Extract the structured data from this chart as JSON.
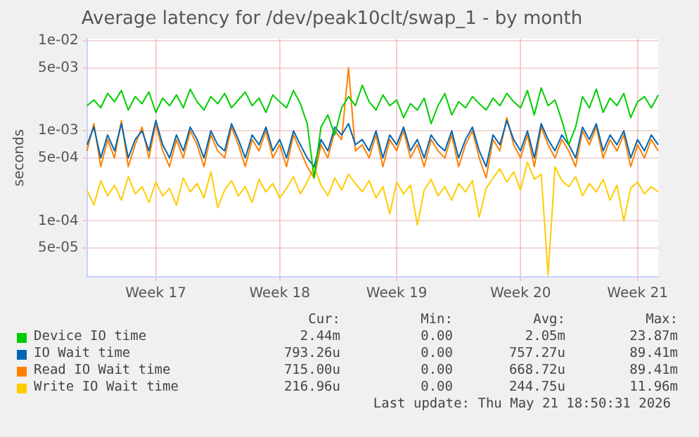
{
  "chart_data": {
    "type": "line",
    "title": "Average latency for /dev/peak10clt/swap_1 - by month",
    "ylabel": "seconds",
    "categories": [
      null,
      null,
      null,
      null,
      null,
      null,
      null,
      null,
      null,
      null,
      "Week 17",
      null,
      null,
      null,
      null,
      null,
      null,
      null,
      null,
      null,
      null,
      null,
      null,
      null,
      null,
      null,
      null,
      null,
      "Week 18",
      null,
      null,
      null,
      null,
      null,
      null,
      null,
      null,
      null,
      null,
      null,
      null,
      null,
      null,
      null,
      null,
      "Week 19",
      null,
      null,
      null,
      null,
      null,
      null,
      null,
      null,
      null,
      null,
      null,
      null,
      null,
      null,
      null,
      null,
      null,
      "Week 20",
      null,
      null,
      null,
      null,
      null,
      null,
      null,
      null,
      null,
      null,
      null,
      null,
      null,
      null,
      null,
      null,
      "Week 21",
      null,
      null,
      null
    ],
    "series": [
      {
        "name": "Device IO time",
        "color": "#00cc00",
        "values": [
          0.0019,
          0.0022,
          0.0018,
          0.0026,
          0.0021,
          0.0028,
          0.0017,
          0.0024,
          0.002,
          0.0027,
          0.0016,
          0.0023,
          0.0019,
          0.0025,
          0.0018,
          0.0029,
          0.0021,
          0.0017,
          0.0024,
          0.002,
          0.0026,
          0.0018,
          0.0022,
          0.0027,
          0.0019,
          0.0023,
          0.0016,
          0.0025,
          0.0021,
          0.0018,
          0.0028,
          0.002,
          0.0012,
          0.0003,
          0.0011,
          0.0015,
          0.0009,
          0.0018,
          0.0024,
          0.0019,
          0.0032,
          0.0021,
          0.0017,
          0.0025,
          0.0019,
          0.0022,
          0.0014,
          0.002,
          0.0017,
          0.0023,
          0.0012,
          0.0019,
          0.0026,
          0.0015,
          0.0021,
          0.0018,
          0.0024,
          0.002,
          0.0017,
          0.0023,
          0.0019,
          0.0026,
          0.0021,
          0.0018,
          0.0028,
          0.0015,
          0.003,
          0.0019,
          0.0022,
          0.0013,
          0.0007,
          0.0011,
          0.0024,
          0.0018,
          0.0029,
          0.0016,
          0.0023,
          0.0019,
          0.0026,
          0.0014,
          0.0021,
          0.0024,
          0.0018,
          0.0025
        ]
      },
      {
        "name": "IO Wait time",
        "color": "#0066b3",
        "values": [
          0.0007,
          0.0011,
          0.0005,
          0.0009,
          0.0006,
          0.0012,
          0.0005,
          0.0008,
          0.001,
          0.0006,
          0.0013,
          0.0007,
          0.0005,
          0.0009,
          0.0006,
          0.0011,
          0.0008,
          0.0005,
          0.001,
          0.0007,
          0.0006,
          0.0012,
          0.0008,
          0.0005,
          0.0009,
          0.0007,
          0.0011,
          0.0006,
          0.0008,
          0.0005,
          0.001,
          0.0007,
          0.0005,
          0.0004,
          0.0008,
          0.0006,
          0.0011,
          0.0009,
          0.0012,
          0.0007,
          0.0008,
          0.0006,
          0.001,
          0.0005,
          0.0009,
          0.0007,
          0.0011,
          0.0006,
          0.0008,
          0.0005,
          0.0009,
          0.0007,
          0.0006,
          0.001,
          0.0005,
          0.0008,
          0.0011,
          0.0006,
          0.0004,
          0.0009,
          0.0007,
          0.0013,
          0.0008,
          0.0006,
          0.001,
          0.0005,
          0.0012,
          0.0008,
          0.0006,
          0.0009,
          0.0007,
          0.0005,
          0.0011,
          0.0008,
          0.0012,
          0.0006,
          0.0009,
          0.0007,
          0.001,
          0.0005,
          0.0008,
          0.0006,
          0.0009,
          0.0007
        ]
      },
      {
        "name": "Read IO Wait time",
        "color": "#ff8000",
        "values": [
          0.0006,
          0.0012,
          0.0004,
          0.0008,
          0.0005,
          0.0013,
          0.0004,
          0.0007,
          0.0011,
          0.0005,
          0.0012,
          0.0006,
          0.0004,
          0.0008,
          0.0005,
          0.001,
          0.0007,
          0.0004,
          0.0009,
          0.0006,
          0.0005,
          0.0011,
          0.0007,
          0.0004,
          0.0008,
          0.0006,
          0.001,
          0.0005,
          0.0007,
          0.0004,
          0.0009,
          0.0006,
          0.0004,
          0.0003,
          0.0007,
          0.0005,
          0.001,
          0.0008,
          0.005,
          0.0006,
          0.0007,
          0.0005,
          0.0009,
          0.0004,
          0.0008,
          0.0006,
          0.001,
          0.0005,
          0.0007,
          0.0004,
          0.0008,
          0.0006,
          0.0005,
          0.0009,
          0.0004,
          0.0007,
          0.001,
          0.0005,
          0.0003,
          0.0008,
          0.0006,
          0.0014,
          0.0007,
          0.0005,
          0.0009,
          0.0004,
          0.0011,
          0.0007,
          0.0005,
          0.0008,
          0.0006,
          0.0004,
          0.001,
          0.0007,
          0.0011,
          0.0005,
          0.0008,
          0.0006,
          0.0009,
          0.0004,
          0.0007,
          0.0005,
          0.0008,
          0.0006
        ]
      },
      {
        "name": "Write IO Wait time",
        "color": "#ffcc00",
        "values": [
          0.00022,
          0.00015,
          0.00028,
          0.00019,
          0.00025,
          0.00017,
          0.00031,
          0.0002,
          0.00024,
          0.00016,
          0.00027,
          0.00019,
          0.00023,
          0.00015,
          0.0003,
          0.00021,
          0.00026,
          0.00018,
          0.00035,
          0.00014,
          0.00022,
          0.00028,
          0.00019,
          0.00024,
          0.00016,
          0.00029,
          0.00021,
          0.00026,
          0.00018,
          0.00023,
          0.00031,
          0.0002,
          0.00027,
          0.0004,
          0.00025,
          0.00019,
          0.0003,
          0.00022,
          0.00033,
          0.00026,
          0.00021,
          0.00028,
          0.00018,
          0.00024,
          0.00012,
          0.00027,
          0.0002,
          0.00025,
          9e-05,
          0.00022,
          0.00029,
          0.00019,
          0.00024,
          0.00017,
          0.00026,
          0.00021,
          0.00028,
          0.00011,
          0.00023,
          0.0003,
          0.00038,
          0.00027,
          0.00035,
          0.00022,
          0.00045,
          0.00029,
          0.00033,
          2.5e-05,
          0.0004,
          0.00028,
          0.00024,
          0.00031,
          0.00019,
          0.00026,
          0.00021,
          0.00029,
          0.00017,
          0.00025,
          0.0001,
          0.00023,
          0.00027,
          0.0002,
          0.00024,
          0.00021
        ]
      }
    ],
    "ylim": [
      2.4e-05,
      0.0105
    ],
    "yticks": [
      {
        "value": 0.01,
        "label": "1e-02"
      },
      {
        "value": 0.005,
        "label": "5e-03"
      },
      {
        "value": 0.001,
        "label": "1e-03"
      },
      {
        "value": 0.0005,
        "label": "5e-04"
      },
      {
        "value": 0.0001,
        "label": "1e-04"
      },
      {
        "value": 5e-05,
        "label": "5e-05"
      }
    ],
    "log": "y",
    "grid": true,
    "legend": "bottom",
    "marker": "none",
    "line_style": "solid",
    "annotations": [
      "Cur:",
      "Min:",
      "Avg:",
      "Max:",
      "2.44m",
      "0.00",
      "2.05m",
      "23.87m",
      "793.26u",
      "0.00",
      "757.27u",
      "89.41m",
      "715.00u",
      "0.00",
      "668.72u",
      "89.41m",
      "216.96u",
      "0.00",
      "244.75u",
      "11.96m",
      "Last update: Thu May 21 18:50:31 2026"
    ]
  }
}
